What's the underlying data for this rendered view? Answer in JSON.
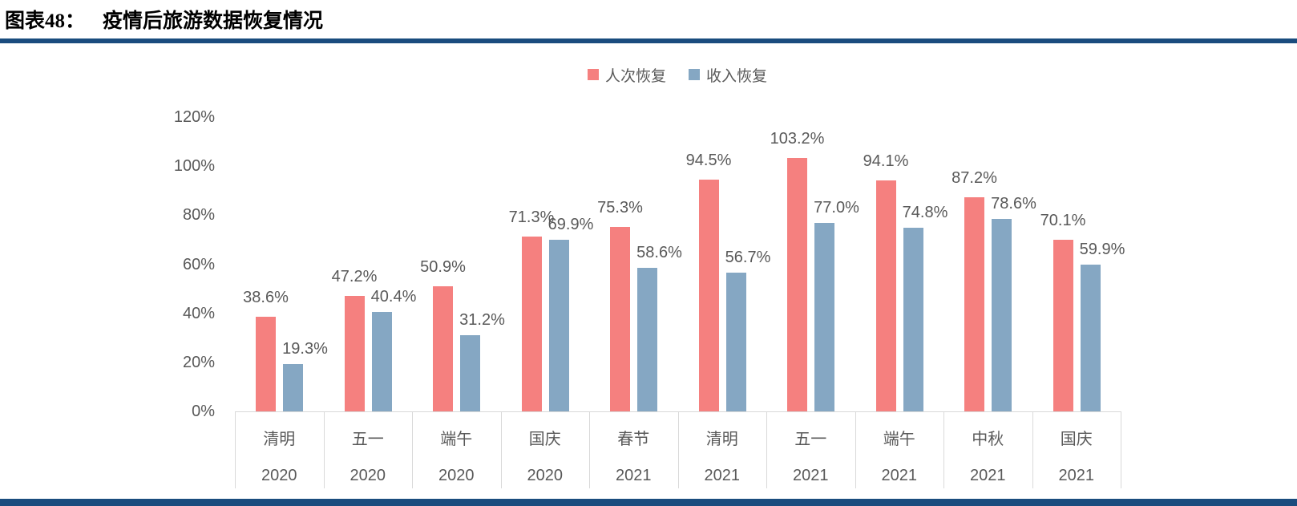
{
  "header": {
    "figure_label": "图表48：",
    "title": "疫情后旅游数据恢复情况"
  },
  "chart_data": {
    "type": "bar",
    "title": "疫情后旅游数据恢复情况",
    "categories": [
      {
        "festival": "清明",
        "year": "2020"
      },
      {
        "festival": "五一",
        "year": "2020"
      },
      {
        "festival": "端午",
        "year": "2020"
      },
      {
        "festival": "国庆",
        "year": "2020"
      },
      {
        "festival": "春节",
        "year": "2021"
      },
      {
        "festival": "清明",
        "year": "2021"
      },
      {
        "festival": "五一",
        "year": "2021"
      },
      {
        "festival": "端午",
        "year": "2021"
      },
      {
        "festival": "中秋",
        "year": "2021"
      },
      {
        "festival": "国庆",
        "year": "2021"
      }
    ],
    "series": [
      {
        "name": "人次恢复",
        "key": "visitor-recovery",
        "color": "#f5807f",
        "values": [
          38.6,
          47.2,
          50.9,
          71.3,
          75.3,
          94.5,
          103.2,
          94.1,
          87.2,
          70.1
        ],
        "labels": [
          "38.6%",
          "47.2%",
          "50.9%",
          "71.3%",
          "75.3%",
          "94.5%",
          "103.2%",
          "94.1%",
          "87.2%",
          "70.1%"
        ]
      },
      {
        "name": "收入恢复",
        "key": "revenue-recovery",
        "color": "#85a7c3",
        "values": [
          19.3,
          40.4,
          31.2,
          69.9,
          58.6,
          56.7,
          77.0,
          74.8,
          78.6,
          59.9
        ],
        "labels": [
          "19.3%",
          "40.4%",
          "31.2%",
          "69.9%",
          "58.6%",
          "56.7%",
          "77.0%",
          "74.8%",
          "78.6%",
          "59.9%"
        ]
      }
    ],
    "y_ticks": [
      {
        "label": "120%",
        "value": 120
      },
      {
        "label": "100%",
        "value": 100
      },
      {
        "label": "80%",
        "value": 80
      },
      {
        "label": "60%",
        "value": 60
      },
      {
        "label": "40%",
        "value": 40
      },
      {
        "label": "20%",
        "value": 20
      },
      {
        "label": "0%",
        "value": 0
      }
    ],
    "ylim": [
      0,
      120
    ],
    "grid": false,
    "legend_position": "top-center"
  },
  "colors": {
    "rule_navy": "#1a4c7e",
    "axis_text": "#595959",
    "divider_gray": "#d9d9d9"
  }
}
